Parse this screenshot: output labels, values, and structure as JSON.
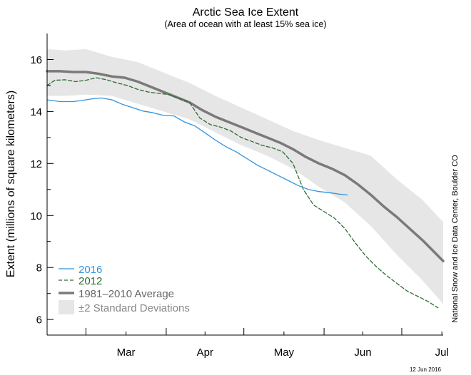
{
  "chart_data": {
    "type": "line",
    "title": "Arctic Sea Ice Extent",
    "subtitle": "(Area of ocean with at least 15% sea ice)",
    "ylabel": "Extent (millions of square kilometers)",
    "xlabel": "",
    "ylim": [
      5.4,
      17.0
    ],
    "xlim": [
      45,
      198
    ],
    "x_ticks": [
      {
        "label": "Mar",
        "day": 60
      },
      {
        "label": "Apr",
        "day": 91
      },
      {
        "label": "May",
        "day": 121
      },
      {
        "label": "Jun",
        "day": 152
      },
      {
        "label": "Jul",
        "day": 182
      }
    ],
    "y_ticks": [
      6,
      8,
      10,
      12,
      14,
      16
    ],
    "grid": false,
    "legend_position": "bottom-left",
    "series": [
      {
        "name": "2016",
        "color": "#2f93e0",
        "style": "solid",
        "x": [
          45,
          50,
          55,
          58,
          62,
          66,
          70,
          74,
          78,
          82,
          86,
          90,
          94,
          98,
          102,
          106,
          110,
          114,
          118,
          122,
          126,
          130,
          134,
          138,
          142,
          146,
          150,
          154,
          158,
          161
        ],
        "y": [
          14.45,
          14.38,
          14.38,
          14.42,
          14.48,
          14.52,
          14.45,
          14.28,
          14.15,
          14.02,
          13.95,
          13.85,
          13.83,
          13.6,
          13.45,
          13.18,
          12.9,
          12.65,
          12.45,
          12.2,
          11.95,
          11.75,
          11.55,
          11.35,
          11.15,
          11.0,
          10.92,
          10.88,
          10.82,
          10.79
        ]
      },
      {
        "name": "2012",
        "color": "#2d6b33",
        "style": "dashed",
        "x": [
          45,
          48,
          52,
          56,
          60,
          64,
          68,
          72,
          76,
          80,
          84,
          88,
          92,
          96,
          100,
          104,
          108,
          112,
          116,
          120,
          124,
          128,
          132,
          136,
          140,
          144,
          148,
          152,
          156,
          160,
          164,
          168,
          172,
          176,
          180,
          184,
          188,
          192,
          196
        ],
        "y": [
          15.0,
          15.2,
          15.22,
          15.15,
          15.2,
          15.3,
          15.22,
          15.1,
          15.0,
          14.85,
          14.75,
          14.7,
          14.65,
          14.5,
          14.35,
          13.75,
          13.5,
          13.4,
          13.25,
          13.0,
          12.85,
          12.7,
          12.6,
          12.45,
          12.0,
          11.0,
          10.4,
          10.15,
          9.9,
          9.5,
          8.95,
          8.45,
          8.05,
          7.7,
          7.4,
          7.1,
          6.9,
          6.7,
          6.45
        ]
      },
      {
        "name": "1981–2010 Average",
        "color": "#7a7a7a",
        "style": "solid",
        "x": [
          45,
          50,
          55,
          60,
          65,
          70,
          75,
          80,
          85,
          90,
          95,
          100,
          105,
          110,
          115,
          120,
          125,
          130,
          135,
          140,
          145,
          150,
          155,
          160,
          165,
          170,
          175,
          180,
          185,
          190,
          195,
          198
        ],
        "y": [
          15.55,
          15.55,
          15.52,
          15.52,
          15.45,
          15.35,
          15.3,
          15.15,
          14.95,
          14.75,
          14.55,
          14.35,
          14.05,
          13.8,
          13.6,
          13.4,
          13.2,
          13.0,
          12.8,
          12.55,
          12.25,
          12.0,
          11.8,
          11.55,
          11.2,
          10.8,
          10.35,
          9.95,
          9.5,
          9.05,
          8.55,
          8.25
        ]
      }
    ],
    "band": {
      "name": "±2 Standard Deviations",
      "color": "#e6e6e6",
      "x": [
        45,
        52,
        60,
        70,
        80,
        90,
        100,
        110,
        120,
        130,
        140,
        150,
        160,
        170,
        180,
        190,
        198
      ],
      "upper": [
        16.4,
        16.35,
        16.4,
        16.1,
        15.9,
        15.5,
        15.1,
        14.6,
        14.15,
        13.7,
        13.25,
        12.9,
        12.6,
        12.3,
        11.4,
        10.6,
        9.75
      ],
      "lower": [
        14.6,
        14.6,
        14.65,
        14.6,
        14.3,
        14.0,
        13.7,
        13.2,
        12.7,
        12.3,
        11.8,
        11.1,
        10.5,
        9.6,
        8.5,
        7.5,
        6.6
      ]
    }
  },
  "credit": "National Snow and Ice Data Center, Boulder CO",
  "date_stamp": "12 Jun 2016"
}
